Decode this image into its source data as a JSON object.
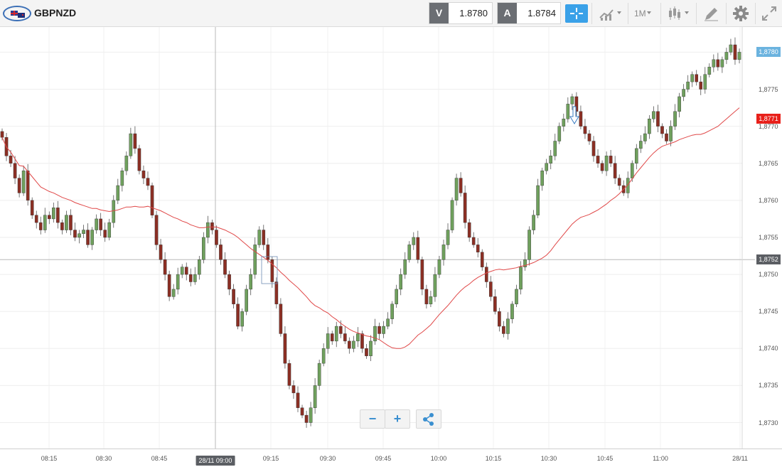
{
  "instrument": {
    "symbol": "GBPNZD",
    "flag_icon": "gb-nz-flag-icon"
  },
  "quotes": {
    "sell_label": "V",
    "sell_price": "1.8780",
    "buy_label": "A",
    "buy_price": "1.8784"
  },
  "toolbar": {
    "crosshair_icon": "crosshair-icon",
    "chart_type_icon": "chart-type-icon",
    "timeframe": "1M",
    "indicators_icon": "candlestick-icon",
    "drawing_icon": "pen-icon",
    "settings_icon": "gear-icon",
    "fullscreen_icon": "expand-icon"
  },
  "colors": {
    "bull": "#6fa05d",
    "bear": "#8b2f24",
    "ma": "#e04848",
    "accent": "#3aa1e8",
    "ask_badge": "#e8201a",
    "last_badge": "#5b5e63"
  },
  "chart_data": {
    "type": "candlestick",
    "y_ticks": [
      "1,8780",
      "1,8775",
      "1,8770",
      "1,8765",
      "1,8760",
      "1,8755",
      "1,8750",
      "1,8745",
      "1,8740",
      "1,8735",
      "1,8730"
    ],
    "ylim": [
      1.87265,
      1.87834
    ],
    "x_ticks": [
      "08:15",
      "08:30",
      "08:45",
      "09:00",
      "09:15",
      "09:30",
      "09:45",
      "10:00",
      "10:15",
      "10:30",
      "10:45",
      "11:00",
      "28/11"
    ],
    "crosshair_time_label": "28/11 09:00",
    "price_badges": [
      {
        "label": "1,8780",
        "value": 1.878,
        "color": "#6bb3df"
      },
      {
        "label": "1,8771",
        "value": 1.8771,
        "color": "#e8201a"
      },
      {
        "label": "1,8752",
        "value": 1.8752,
        "color": "#5b5e63"
      }
    ],
    "crosshair_price": 1.8752,
    "crosshair_time": "09:00",
    "candles": [],
    "ma": []
  },
  "zoom": {
    "zoom_out": "−",
    "zoom_in": "+",
    "share_icon": "share-icon"
  }
}
